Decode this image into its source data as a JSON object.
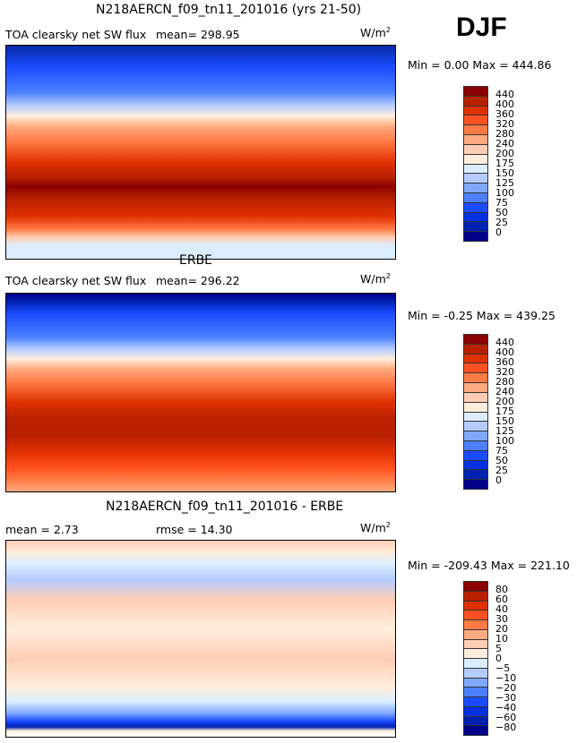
{
  "season": "DJF",
  "units_label": "W/m",
  "units_sup": "2",
  "panels": [
    {
      "title": "N218AERCN_f09_tn11_201016 (yrs 21-50)",
      "variable": "TOA clearsky net SW flux",
      "mean": "mean= 298.95",
      "minmax": "Min =    0.00 Max = 444.86"
    },
    {
      "title": "ERBE",
      "variable": "TOA clearsky net SW flux",
      "mean": "mean= 296.22",
      "minmax": "Min =  -0.25 Max = 439.25"
    },
    {
      "title": "N218AERCN_f09_tn11_201016 - ERBE",
      "mean": "mean =    2.73",
      "rmse": "rmse =  14.30",
      "minmax": "Min = -209.43 Max = 221.10"
    }
  ],
  "colorbar_levels": [
    "440",
    "400",
    "360",
    "320",
    "280",
    "240",
    "200",
    "175",
    "150",
    "125",
    "100",
    "75",
    "50",
    "25",
    "0"
  ],
  "diff_colorbar_levels": [
    "80",
    "60",
    "40",
    "30",
    "20",
    "10",
    "5",
    "0",
    "−5",
    "−10",
    "−20",
    "−30",
    "−40",
    "−60",
    "−80"
  ],
  "colors": [
    "#8b0000",
    "#b82000",
    "#e03000",
    "#ff5020",
    "#ff7a45",
    "#ffaa80",
    "#ffcdb4",
    "#ffeedd",
    "#daeeff",
    "#b4ccff",
    "#80a8ff",
    "#4c80ff",
    "#1a4cff",
    "#0030e0",
    "#0020b0",
    "#000088"
  ]
}
